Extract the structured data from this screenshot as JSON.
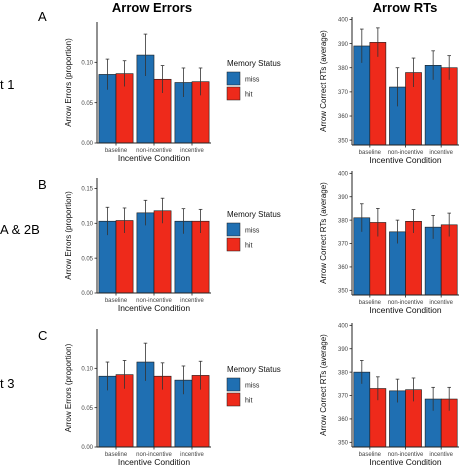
{
  "figure": {
    "col_titles": [
      "Arrow Errors",
      "Arrow RTs"
    ],
    "panel_letters": [
      "A",
      "B",
      "C"
    ],
    "row_labels": [
      "t 1",
      "A & 2B",
      "t 3"
    ]
  },
  "legend": {
    "title": "Memory Status",
    "entries": [
      "miss",
      "hit"
    ]
  },
  "colors": {
    "miss": "#1f6fb2",
    "hit": "#ee2a1b",
    "axis": "#222222",
    "tick_text": "#444444"
  },
  "chart_data": [
    {
      "type": "bar",
      "panel": "A",
      "measure": "Arrow Errors",
      "xlabel": "Incentive Condition",
      "ylabel": "Arrow Errors (proportion)",
      "categories": [
        "baseline",
        "non-incentive",
        "incentive"
      ],
      "ylim": [
        0,
        0.15
      ],
      "yticks": [
        "0.00",
        "0.05",
        "0.10"
      ],
      "ytick_values": [
        0,
        0.05,
        0.1
      ],
      "series": [
        {
          "name": "miss",
          "values": [
            0.085,
            0.109,
            0.075
          ],
          "errors": [
            0.019,
            0.026,
            0.018
          ]
        },
        {
          "name": "hit",
          "values": [
            0.086,
            0.079,
            0.076
          ],
          "errors": [
            0.016,
            0.017,
            0.017
          ]
        }
      ]
    },
    {
      "type": "bar",
      "panel": "A",
      "measure": "Arrow RTs",
      "xlabel": "Incentive Condition",
      "ylabel": "Arrow Correct RTs (average)",
      "categories": [
        "baseline",
        "non-incentive",
        "incentive"
      ],
      "ylim": [
        348,
        401
      ],
      "yticks": [
        "350",
        "360",
        "370",
        "380",
        "390",
        "400"
      ],
      "ytick_values": [
        350,
        360,
        370,
        380,
        390,
        400
      ],
      "series": [
        {
          "name": "miss",
          "values": [
            389,
            372,
            381
          ],
          "errors": [
            7,
            8,
            6
          ]
        },
        {
          "name": "hit",
          "values": [
            390.5,
            378,
            380
          ],
          "errors": [
            6,
            6,
            5
          ]
        }
      ]
    },
    {
      "type": "bar",
      "panel": "B",
      "measure": "Arrow Errors",
      "xlabel": "Incentive Condition",
      "ylabel": "Arrow Errors (proportion)",
      "categories": [
        "baseline",
        "non-incentive",
        "incentive"
      ],
      "ylim": [
        0,
        0.165
      ],
      "yticks": [
        "0.00",
        "0.05",
        "0.10",
        "0.15"
      ],
      "ytick_values": [
        0,
        0.05,
        0.1,
        0.15
      ],
      "series": [
        {
          "name": "miss",
          "values": [
            0.103,
            0.115,
            0.103
          ],
          "errors": [
            0.02,
            0.018,
            0.018
          ]
        },
        {
          "name": "hit",
          "values": [
            0.104,
            0.118,
            0.103
          ],
          "errors": [
            0.018,
            0.018,
            0.017
          ]
        }
      ]
    },
    {
      "type": "bar",
      "panel": "B",
      "measure": "Arrow RTs",
      "xlabel": "Incentive Condition",
      "ylabel": "Arrow Correct RTs (average)",
      "categories": [
        "baseline",
        "non-incentive",
        "incentive"
      ],
      "ylim": [
        348,
        401
      ],
      "yticks": [
        "350",
        "360",
        "370",
        "380",
        "390",
        "400"
      ],
      "ytick_values": [
        350,
        360,
        370,
        380,
        390,
        400
      ],
      "series": [
        {
          "name": "miss",
          "values": [
            381,
            375,
            377
          ],
          "errors": [
            6,
            5,
            5
          ]
        },
        {
          "name": "hit",
          "values": [
            379,
            379.5,
            378
          ],
          "errors": [
            6,
            5,
            5
          ]
        }
      ]
    },
    {
      "type": "bar",
      "panel": "C",
      "measure": "Arrow Errors",
      "xlabel": "Incentive Condition",
      "ylabel": "Arrow Errors (proportion)",
      "categories": [
        "baseline",
        "non-incentive",
        "incentive"
      ],
      "ylim": [
        0,
        0.15
      ],
      "yticks": [
        "0.00",
        "0.05",
        "0.10"
      ],
      "ytick_values": [
        0,
        0.05,
        0.1
      ],
      "series": [
        {
          "name": "miss",
          "values": [
            0.09,
            0.108,
            0.085
          ],
          "errors": [
            0.018,
            0.024,
            0.018
          ]
        },
        {
          "name": "hit",
          "values": [
            0.092,
            0.09,
            0.091
          ],
          "errors": [
            0.018,
            0.017,
            0.018
          ]
        }
      ]
    },
    {
      "type": "bar",
      "panel": "C",
      "measure": "Arrow RTs",
      "xlabel": "Incentive Condition",
      "ylabel": "Arrow Correct RTs (average)",
      "categories": [
        "baseline",
        "non-incentive",
        "incentive"
      ],
      "ylim": [
        348,
        401
      ],
      "yticks": [
        "350",
        "360",
        "370",
        "380",
        "390",
        "400"
      ],
      "ytick_values": [
        350,
        360,
        370,
        380,
        390,
        400
      ],
      "series": [
        {
          "name": "miss",
          "values": [
            380,
            372,
            368.5
          ],
          "errors": [
            5,
            5,
            5
          ]
        },
        {
          "name": "hit",
          "values": [
            373,
            372.5,
            368.5
          ],
          "errors": [
            5,
            5,
            5
          ]
        }
      ]
    }
  ]
}
